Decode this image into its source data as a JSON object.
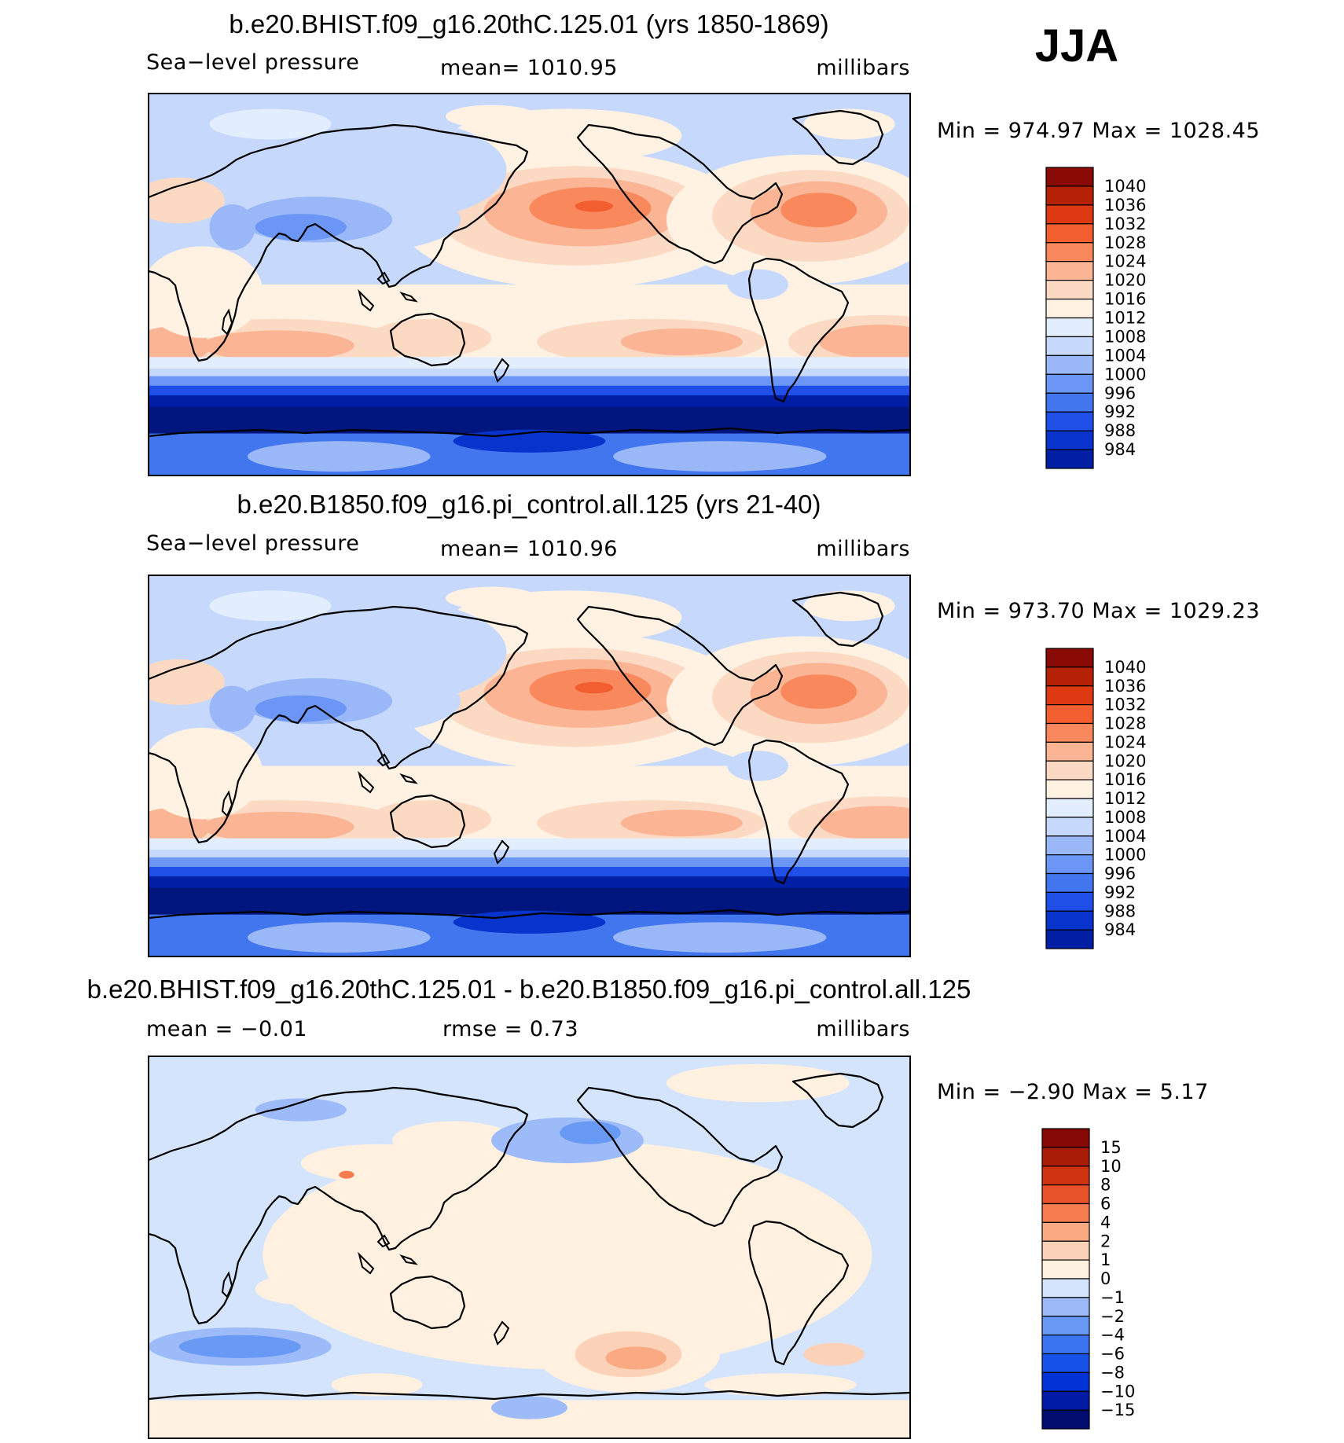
{
  "season": "JJA",
  "colors": {
    "abs": [
      "#00157d",
      "#001fa5",
      "#0833cd",
      "#1f4fe6",
      "#4276ef",
      "#6b96f5",
      "#9ab8f7",
      "#c6d8fb",
      "#e2eefd",
      "#fff2e3",
      "#fbd9c3",
      "#fbb594",
      "#f9895c",
      "#f25e30",
      "#dd3a13",
      "#b62207",
      "#8a0a05"
    ],
    "diff": [
      "#000c6e",
      "#001aa3",
      "#0332d6",
      "#1652e8",
      "#3a74f0",
      "#6899f5",
      "#9dbbf8",
      "#d3e4fc",
      "#fff0e0",
      "#fbd2b8",
      "#f9aa83",
      "#f47c4e",
      "#e8522a",
      "#d03310",
      "#a91c07",
      "#850805"
    ]
  },
  "panels": [
    {
      "title": "b.e20.BHIST.f09_g16.20thC.125.01 (yrs 1850-1869)",
      "variable": "Sea−level pressure",
      "stat1": "mean=  1010.95",
      "units": "millibars",
      "minmax": "Min  =  974.97  Max  =  1028.45"
    },
    {
      "title": "b.e20.B1850.f09_g16.pi_control.all.125 (yrs 21-40)",
      "variable": "Sea−level pressure",
      "stat1": "mean=  1010.96",
      "units": "millibars",
      "minmax": "Min  =  973.70  Max  =  1029.23"
    },
    {
      "title": "b.e20.BHIST.f09_g16.20thC.125.01 - b.e20.B1850.f09_g16.pi_control.all.125",
      "stat1": "mean  =    −0.01",
      "stat2": "rmse  =     0.73",
      "units": "millibars",
      "minmax": "Min  =    −2.90  Max  =      5.17"
    }
  ],
  "chart_data": [
    {
      "type": "heatmap",
      "title": "b.e20.BHIST.f09_g16.20thC.125.01 (yrs 1850-1869)",
      "variable": "Sea-level pressure",
      "units": "millibars",
      "mean": 1010.95,
      "min": 974.97,
      "max": 1028.45,
      "contour_levels": [
        984,
        988,
        992,
        996,
        1000,
        1004,
        1008,
        1012,
        1016,
        1020,
        1024,
        1028,
        1032,
        1036,
        1040
      ],
      "colorbar_labels": [
        "1040",
        "1036",
        "1032",
        "1028",
        "1024",
        "1020",
        "1016",
        "1012",
        "1008",
        "1004",
        "1000",
        "996",
        "992",
        "988",
        "984"
      ],
      "lon_range": [
        0,
        360
      ],
      "lat_range": [
        -90,
        90
      ]
    },
    {
      "type": "heatmap",
      "title": "b.e20.B1850.f09_g16.pi_control.all.125 (yrs 21-40)",
      "variable": "Sea-level pressure",
      "units": "millibars",
      "mean": 1010.96,
      "min": 973.7,
      "max": 1029.23,
      "contour_levels": [
        984,
        988,
        992,
        996,
        1000,
        1004,
        1008,
        1012,
        1016,
        1020,
        1024,
        1028,
        1032,
        1036,
        1040
      ],
      "colorbar_labels": [
        "1040",
        "1036",
        "1032",
        "1028",
        "1024",
        "1020",
        "1016",
        "1012",
        "1008",
        "1004",
        "1000",
        "996",
        "992",
        "988",
        "984"
      ],
      "lon_range": [
        0,
        360
      ],
      "lat_range": [
        -90,
        90
      ]
    },
    {
      "type": "heatmap",
      "title": "b.e20.BHIST.f09_g16.20thC.125.01 - b.e20.B1850.f09_g16.pi_control.all.125",
      "units": "millibars",
      "mean": -0.01,
      "rmse": 0.73,
      "min": -2.9,
      "max": 5.17,
      "contour_levels": [
        -15,
        -10,
        -8,
        -6,
        -4,
        -2,
        -1,
        0,
        1,
        2,
        4,
        6,
        8,
        10,
        15
      ],
      "colorbar_labels": [
        "15",
        "10",
        "8",
        "6",
        "4",
        "2",
        "1",
        "0",
        "−1",
        "−2",
        "−4",
        "−6",
        "−8",
        "−10",
        "−15"
      ],
      "lon_range": [
        0,
        360
      ],
      "lat_range": [
        -90,
        90
      ]
    }
  ]
}
